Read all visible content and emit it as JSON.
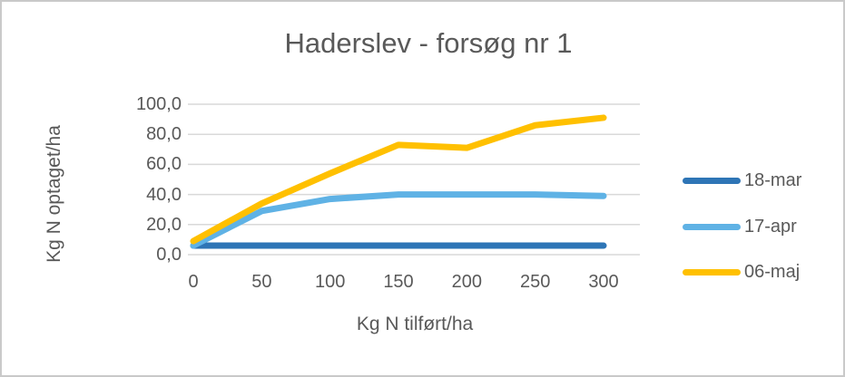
{
  "chart_data": {
    "type": "line",
    "title": "Haderslev - forsøg nr 1",
    "xlabel": "Kg N tilført/ha",
    "ylabel": "Kg N optaget/ha",
    "x": [
      0,
      50,
      100,
      150,
      200,
      250,
      300
    ],
    "series": [
      {
        "name": "18-mar",
        "color": "#2E75B6",
        "values": [
          6,
          6,
          6,
          6,
          6,
          6,
          6
        ]
      },
      {
        "name": "17-apr",
        "color": "#5FB2E5",
        "values": [
          6,
          29,
          37,
          40,
          40,
          40,
          39
        ]
      },
      {
        "name": "06-maj",
        "color": "#FFC000",
        "values": [
          9,
          34,
          54,
          73,
          71,
          86,
          91
        ]
      }
    ],
    "xlim": [
      0,
      300
    ],
    "ylim": [
      0,
      100
    ],
    "xticks": [
      0,
      50,
      100,
      150,
      200,
      250,
      300
    ],
    "xtick_labels": [
      "0",
      "50",
      "100",
      "150",
      "200",
      "250",
      "300"
    ],
    "yticks": [
      0,
      20,
      40,
      60,
      80,
      100
    ],
    "ytick_labels": [
      "0,0",
      "20,0",
      "40,0",
      "60,0",
      "80,0",
      "100,0"
    ],
    "grid": "horizontal",
    "gridline_color": "#D9D9D9",
    "text_color": "#595959",
    "legend_position": "right",
    "legend": [
      "18-mar",
      "17-apr",
      "06-maj"
    ]
  }
}
